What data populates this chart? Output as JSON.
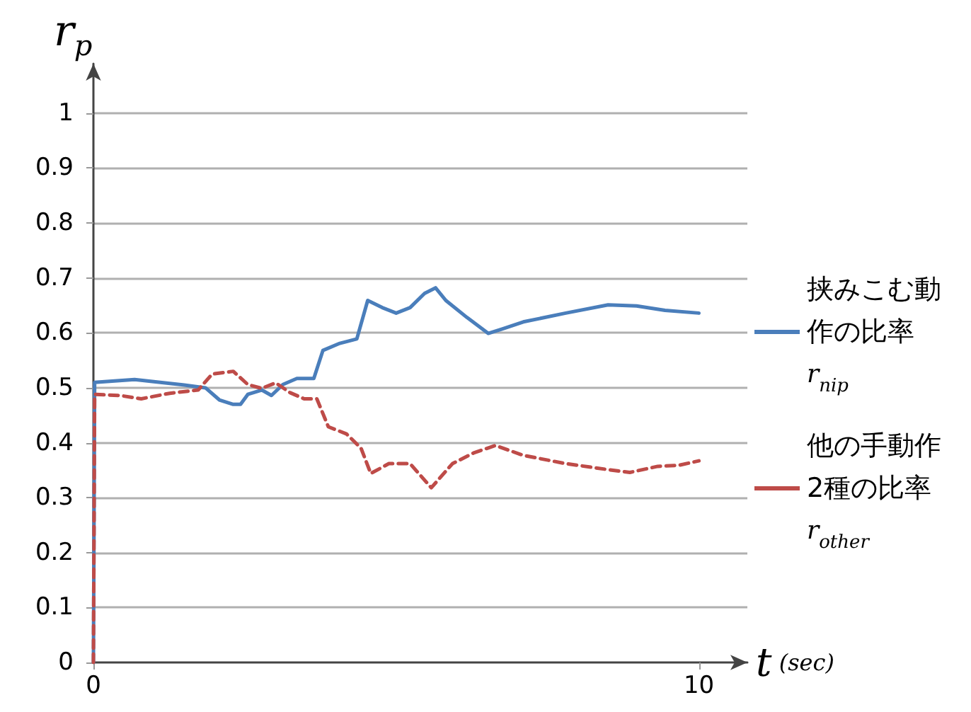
{
  "chart_data": {
    "type": "line",
    "xlabel": "t (sec)",
    "ylabel": "r$_{p}$",
    "xlim": [
      0,
      10.8
    ],
    "xticks": [
      0,
      10
    ],
    "ylim": [
      0,
      1.09
    ],
    "yticks": [
      0,
      0.1,
      0.2,
      0.3,
      0.4,
      0.5,
      0.6,
      0.7,
      0.8,
      0.9,
      1
    ],
    "grid": "y",
    "legend": "right",
    "marker": "none",
    "series": [
      {
        "name": "挟みこむ動作の比率 r$_{nip}$",
        "color": "#4a7ebb",
        "line_style": "solid",
        "x": [
          0,
          0.02,
          0.68,
          1.5,
          1.85,
          2.08,
          2.3,
          2.43,
          2.55,
          2.78,
          2.94,
          3.13,
          3.36,
          3.64,
          3.79,
          4.07,
          4.35,
          4.53,
          4.77,
          5.0,
          5.23,
          5.47,
          5.65,
          5.82,
          6.17,
          6.52,
          6.75,
          7.1,
          7.8,
          8.5,
          8.97,
          9.44,
          10
        ],
        "values": [
          0,
          0.51,
          0.515,
          0.505,
          0.5,
          0.478,
          0.47,
          0.47,
          0.488,
          0.496,
          0.486,
          0.506,
          0.517,
          0.517,
          0.568,
          0.581,
          0.589,
          0.659,
          0.646,
          0.636,
          0.646,
          0.672,
          0.682,
          0.659,
          0.628,
          0.599,
          0.607,
          0.62,
          0.636,
          0.651,
          0.649,
          0.641,
          0.636
        ]
      },
      {
        "name": "他の手動作2種の比率 r$_{other}$",
        "color": "#be4b48",
        "line_style": "dashed",
        "x": [
          0,
          0.02,
          0.44,
          0.79,
          1.26,
          1.73,
          1.96,
          2.31,
          2.55,
          2.78,
          3.01,
          3.25,
          3.48,
          3.69,
          3.88,
          4.18,
          4.42,
          4.58,
          4.88,
          5.23,
          5.58,
          5.93,
          6.29,
          6.64,
          7.1,
          7.8,
          8.5,
          8.86,
          9.32,
          9.67,
          10
        ],
        "values": [
          0,
          0.488,
          0.486,
          0.48,
          0.49,
          0.496,
          0.525,
          0.53,
          0.506,
          0.499,
          0.509,
          0.491,
          0.48,
          0.48,
          0.429,
          0.416,
          0.39,
          0.344,
          0.362,
          0.362,
          0.318,
          0.362,
          0.382,
          0.395,
          0.377,
          0.362,
          0.351,
          0.346,
          0.357,
          0.359,
          0.367
        ]
      }
    ]
  }
}
